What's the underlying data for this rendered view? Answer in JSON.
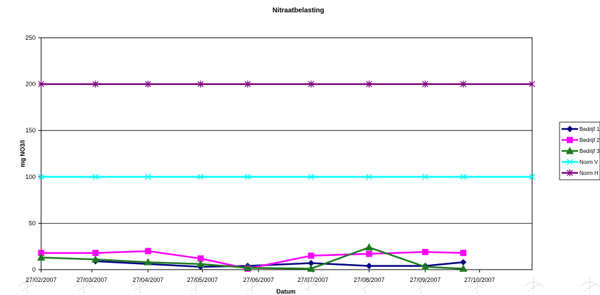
{
  "chart_data": {
    "type": "line",
    "title": "Nitraatbelasting",
    "xlabel": "Datum",
    "ylabel": "mg NO3/l",
    "ylim": [
      0,
      250
    ],
    "yticks": [
      0,
      50,
      100,
      150,
      200,
      250
    ],
    "xlim": [
      "2007-02-27",
      "2007-11-25"
    ],
    "xticks": [
      {
        "date": "2007-02-27",
        "label": "27/02/2007"
      },
      {
        "date": "2007-03-27",
        "label": "27/03/2007"
      },
      {
        "date": "2007-04-27",
        "label": "27/04/2007"
      },
      {
        "date": "2007-05-27",
        "label": "27/05/2007"
      },
      {
        "date": "2007-06-27",
        "label": "27/06/2007"
      },
      {
        "date": "2007-07-27",
        "label": "27/07/2007"
      },
      {
        "date": "2007-08-27",
        "label": "27/08/2007"
      },
      {
        "date": "2007-09-27",
        "label": "27/09/2007"
      },
      {
        "date": "2007-10-27",
        "label": "27/10/2007"
      }
    ],
    "grid": "horizontal",
    "legend": "right",
    "series": [
      {
        "name": "Bedrijf 1",
        "color": "#000080",
        "marker": "diamond",
        "points": [
          {
            "x": "2007-03-29",
            "y": 9
          },
          {
            "x": "2007-05-26",
            "y": 3
          },
          {
            "x": "2007-06-21",
            "y": 4
          },
          {
            "x": "2007-07-26",
            "y": 7
          },
          {
            "x": "2007-08-27",
            "y": 4
          },
          {
            "x": "2007-09-27",
            "y": 4
          },
          {
            "x": "2007-10-18",
            "y": 8
          }
        ]
      },
      {
        "name": "Bedrijf 2",
        "color": "#ff00ff",
        "marker": "square",
        "points": [
          {
            "x": "2007-02-27",
            "y": 18
          },
          {
            "x": "2007-03-29",
            "y": 18
          },
          {
            "x": "2007-04-27",
            "y": 20
          },
          {
            "x": "2007-05-26",
            "y": 12
          },
          {
            "x": "2007-06-21",
            "y": 1
          },
          {
            "x": "2007-07-26",
            "y": 15
          },
          {
            "x": "2007-08-27",
            "y": 17
          },
          {
            "x": "2007-09-27",
            "y": 19
          },
          {
            "x": "2007-10-18",
            "y": 18
          }
        ]
      },
      {
        "name": "Bedrijf 3",
        "color": "#1f7a1f",
        "marker": "triangle",
        "points": [
          {
            "x": "2007-02-27",
            "y": 13
          },
          {
            "x": "2007-03-29",
            "y": 11
          },
          {
            "x": "2007-04-27",
            "y": 8
          },
          {
            "x": "2007-05-26",
            "y": 6
          },
          {
            "x": "2007-06-21",
            "y": 2
          },
          {
            "x": "2007-07-26",
            "y": 1
          },
          {
            "x": "2007-08-27",
            "y": 24
          },
          {
            "x": "2007-09-27",
            "y": 3
          },
          {
            "x": "2007-10-18",
            "y": 1
          }
        ]
      },
      {
        "name": "Norm V",
        "color": "#00ffff",
        "marker": "x",
        "points": [
          {
            "x": "2007-02-27",
            "y": 100
          },
          {
            "x": "2007-03-29",
            "y": 100
          },
          {
            "x": "2007-04-27",
            "y": 100
          },
          {
            "x": "2007-05-26",
            "y": 100
          },
          {
            "x": "2007-06-21",
            "y": 100
          },
          {
            "x": "2007-07-26",
            "y": 100
          },
          {
            "x": "2007-08-27",
            "y": 100
          },
          {
            "x": "2007-09-27",
            "y": 100
          },
          {
            "x": "2007-10-18",
            "y": 100
          },
          {
            "x": "2007-11-25",
            "y": 100
          }
        ]
      },
      {
        "name": "Norm H",
        "color": "#800080",
        "marker": "star",
        "points": [
          {
            "x": "2007-02-27",
            "y": 200
          },
          {
            "x": "2007-03-29",
            "y": 200
          },
          {
            "x": "2007-04-27",
            "y": 200
          },
          {
            "x": "2007-05-26",
            "y": 200
          },
          {
            "x": "2007-06-21",
            "y": 200
          },
          {
            "x": "2007-07-26",
            "y": 200
          },
          {
            "x": "2007-08-27",
            "y": 200
          },
          {
            "x": "2007-09-27",
            "y": 200
          },
          {
            "x": "2007-10-18",
            "y": 200
          },
          {
            "x": "2007-11-25",
            "y": 200
          }
        ]
      }
    ]
  }
}
